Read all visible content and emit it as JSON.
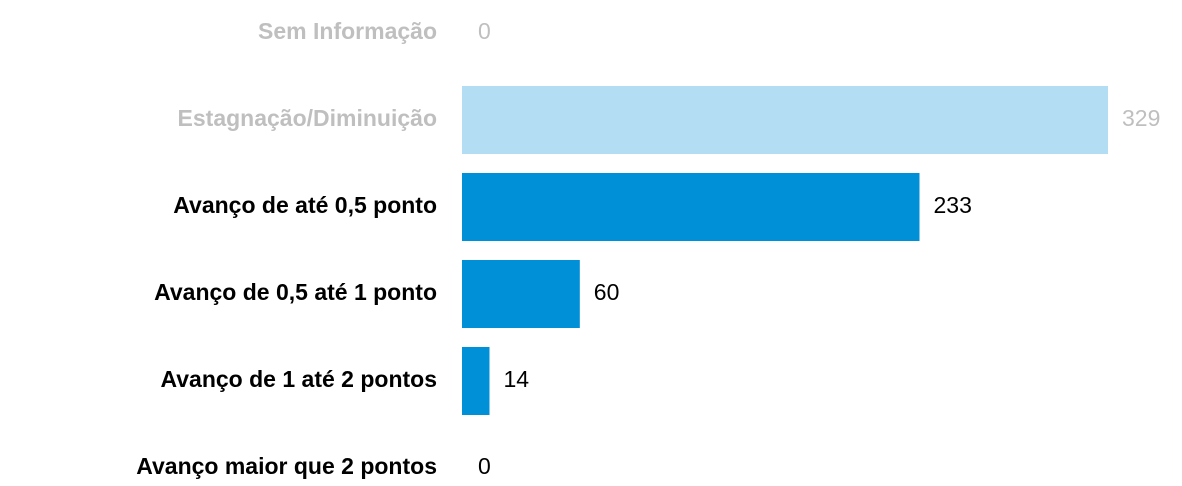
{
  "chart_data": {
    "type": "bar",
    "orientation": "horizontal",
    "categories": [
      "Sem Informação",
      "Estagnação/Diminuição",
      "Avanço de até 0,5 ponto",
      "Avanço de 0,5 até 1 ponto",
      "Avanço de 1 até 2 pontos",
      "Avanço maior que 2 pontos"
    ],
    "values": [
      0,
      329,
      233,
      60,
      14,
      0
    ],
    "colors": [
      "#b3ddf2",
      "#b3ddf2",
      "#0090d8",
      "#0090d8",
      "#0090d8",
      "#0090d8"
    ],
    "label_colors": [
      "#bfbfbf",
      "#bfbfbf",
      "#000000",
      "#000000",
      "#000000",
      "#000000"
    ]
  }
}
